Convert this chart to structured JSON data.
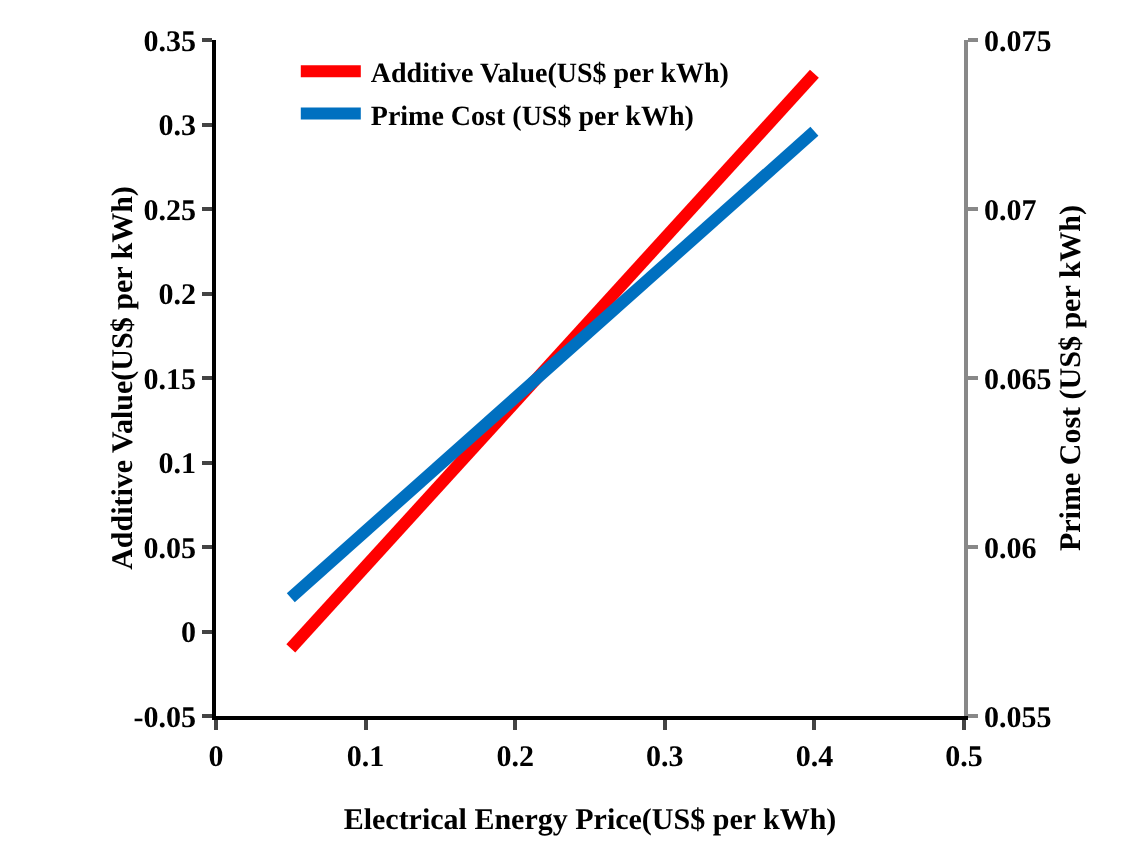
{
  "chart_data": {
    "type": "line",
    "xlabel": "Electrical Energy Price(US$ per kWh)",
    "ylabel": "Additive Value(US$ per kWh)",
    "y2label": "Prime Cost (US$ per kWh)",
    "x": [
      0.05,
      0.4
    ],
    "series": [
      {
        "name": "Additive Value(US$ per kWh)",
        "color": "#ff0000",
        "values": [
          -0.01,
          0.33
        ]
      },
      {
        "name": "Prime Cost (US$ per kWh)",
        "color": "#0070c0",
        "values": [
          0.0585,
          0.0723
        ],
        "axis": "y2"
      }
    ],
    "xlim": [
      0,
      0.5
    ],
    "xticks": [
      0,
      0.1,
      0.2,
      0.3,
      0.4,
      0.5
    ],
    "ylim": [
      -0.05,
      0.35
    ],
    "yticks": [
      -0.05,
      0,
      0.05,
      0.1,
      0.15,
      0.2,
      0.25,
      0.3,
      0.35
    ],
    "y2lim": [
      0.055,
      0.075
    ],
    "y2ticks": [
      0.055,
      0.06,
      0.065,
      0.07,
      0.075
    ],
    "grid": false,
    "legend": "top left",
    "marker": "none",
    "line_style": "solid"
  }
}
